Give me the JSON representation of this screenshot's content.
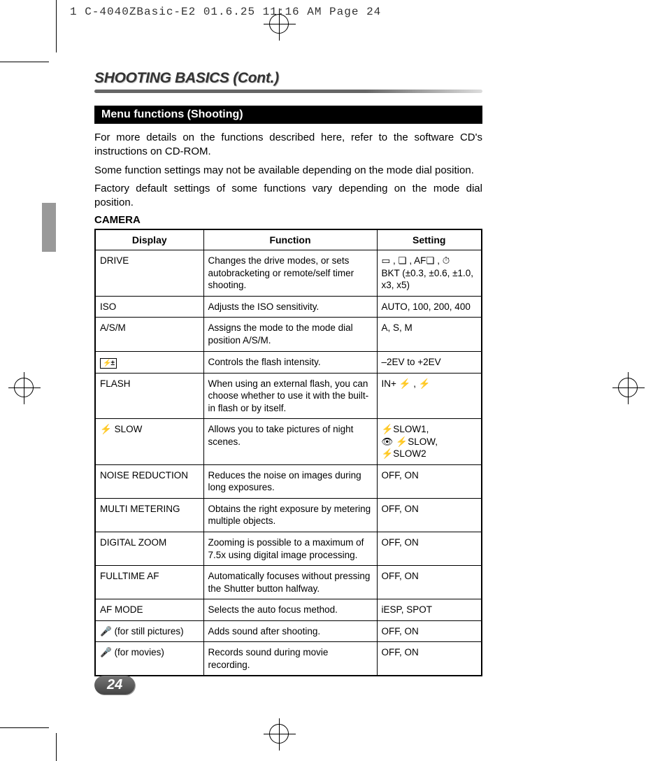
{
  "print_header": "1 C-4040ZBasic-E2  01.6.25 11:16 AM  Page 24",
  "section_title_main": "SHOOTING BASICS",
  "section_title_cont": " (Cont.)",
  "subhead": "Menu functions (Shooting)",
  "intro1": "For more details on the functions described here, refer to the software CD's instructions on CD-ROM.",
  "intro2": "Some function settings may not be available depending on the mode dial position.",
  "intro3": "Factory default settings of some functions vary depending on the mode dial position.",
  "camera_label": "CAMERA",
  "columns": {
    "display": "Display",
    "function": "Function",
    "setting": "Setting"
  },
  "rows": [
    {
      "display": "DRIVE",
      "display_icon": "",
      "function": "Changes the drive modes, or sets autobracketing or remote/self timer shooting.",
      "setting": "▭ , ❏ , AF❏ , ⏱\nBKT (±0.3, ±0.6, ±1.0, x3, x5)"
    },
    {
      "display": "ISO",
      "display_icon": "",
      "function": "Adjusts the ISO sensitivity.",
      "setting": "AUTO, 100, 200, 400"
    },
    {
      "display": "A/S/M",
      "display_icon": "",
      "function": "Assigns the mode to the mode dial position A/S/M.",
      "setting": "A, S, M"
    },
    {
      "display": "",
      "display_icon": "flashcomp",
      "function": "Controls the flash intensity.",
      "setting": "–2EV to +2EV"
    },
    {
      "display": "FLASH",
      "display_icon": "",
      "function": "When using an external flash, you can choose whether to use it with the built-in flash or by itself.",
      "setting": "IN+ ⚡ , ⚡"
    },
    {
      "display": " SLOW",
      "display_icon": "bolt",
      "function": "Allows you to take pictures of night scenes.",
      "setting": "⚡SLOW1,\n👁 ⚡SLOW,\n⚡SLOW2"
    },
    {
      "display": "NOISE REDUCTION",
      "display_icon": "",
      "function": "Reduces the noise on images during long exposures.",
      "setting": "OFF, ON"
    },
    {
      "display": "MULTI METERING",
      "display_icon": "",
      "function": "Obtains the right exposure by metering multiple objects.",
      "setting": "OFF, ON"
    },
    {
      "display": "DIGITAL ZOOM",
      "display_icon": "",
      "function": "Zooming is possible to a maximum of 7.5x using digital image processing.",
      "setting": "OFF, ON"
    },
    {
      "display": "FULLTIME AF",
      "display_icon": "",
      "function": "Automatically focuses without pressing the Shutter button halfway.",
      "setting": "OFF, ON"
    },
    {
      "display": "AF MODE",
      "display_icon": "",
      "function": "Selects the auto focus method.",
      "setting": "iESP, SPOT"
    },
    {
      "display": "  (for still pictures)",
      "display_icon": "mic",
      "function": "Adds sound after shooting.",
      "setting": "OFF, ON"
    },
    {
      "display": "  (for movies)",
      "display_icon": "mic",
      "function": "Records sound during movie recording.",
      "setting": "OFF, ON"
    }
  ],
  "page_number": "24"
}
